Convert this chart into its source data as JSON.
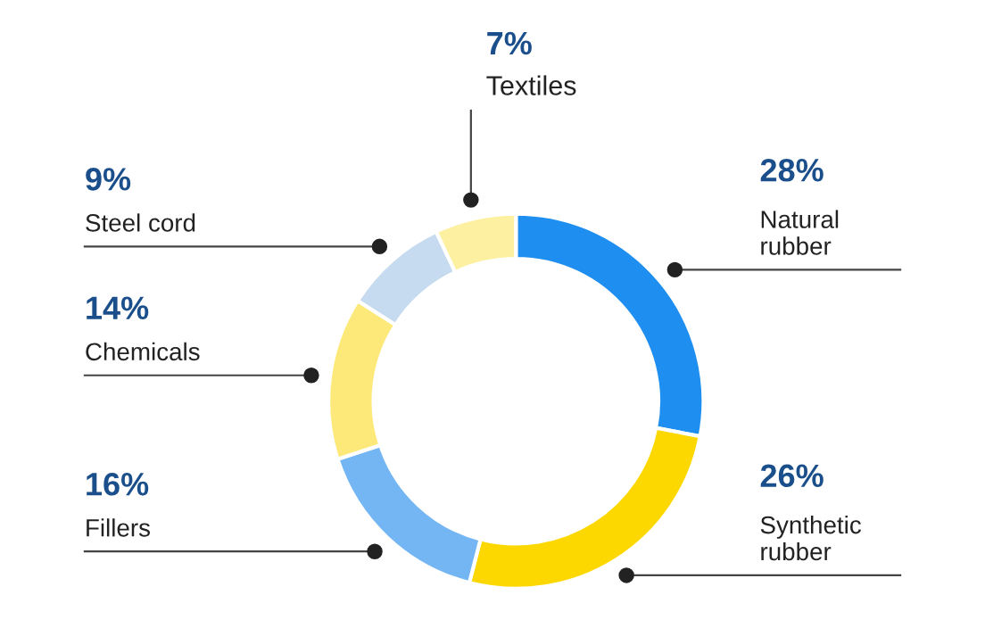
{
  "chart_data": {
    "type": "donut",
    "categories": [
      "Natural\nrubber",
      "Synthetic\nrubber",
      "Fillers",
      "Chemicals",
      "Steel cord",
      "Textiles"
    ],
    "values": [
      28,
      26,
      16,
      14,
      9,
      7
    ],
    "value_labels": [
      "28%",
      "26%",
      "16%",
      "14%",
      "9%",
      "7%"
    ],
    "colors": [
      "#1e8ff0",
      "#fcd800",
      "#74b6f4",
      "#fde97a",
      "#c6daf0",
      "#fdf0a0"
    ],
    "legend": false
  }
}
